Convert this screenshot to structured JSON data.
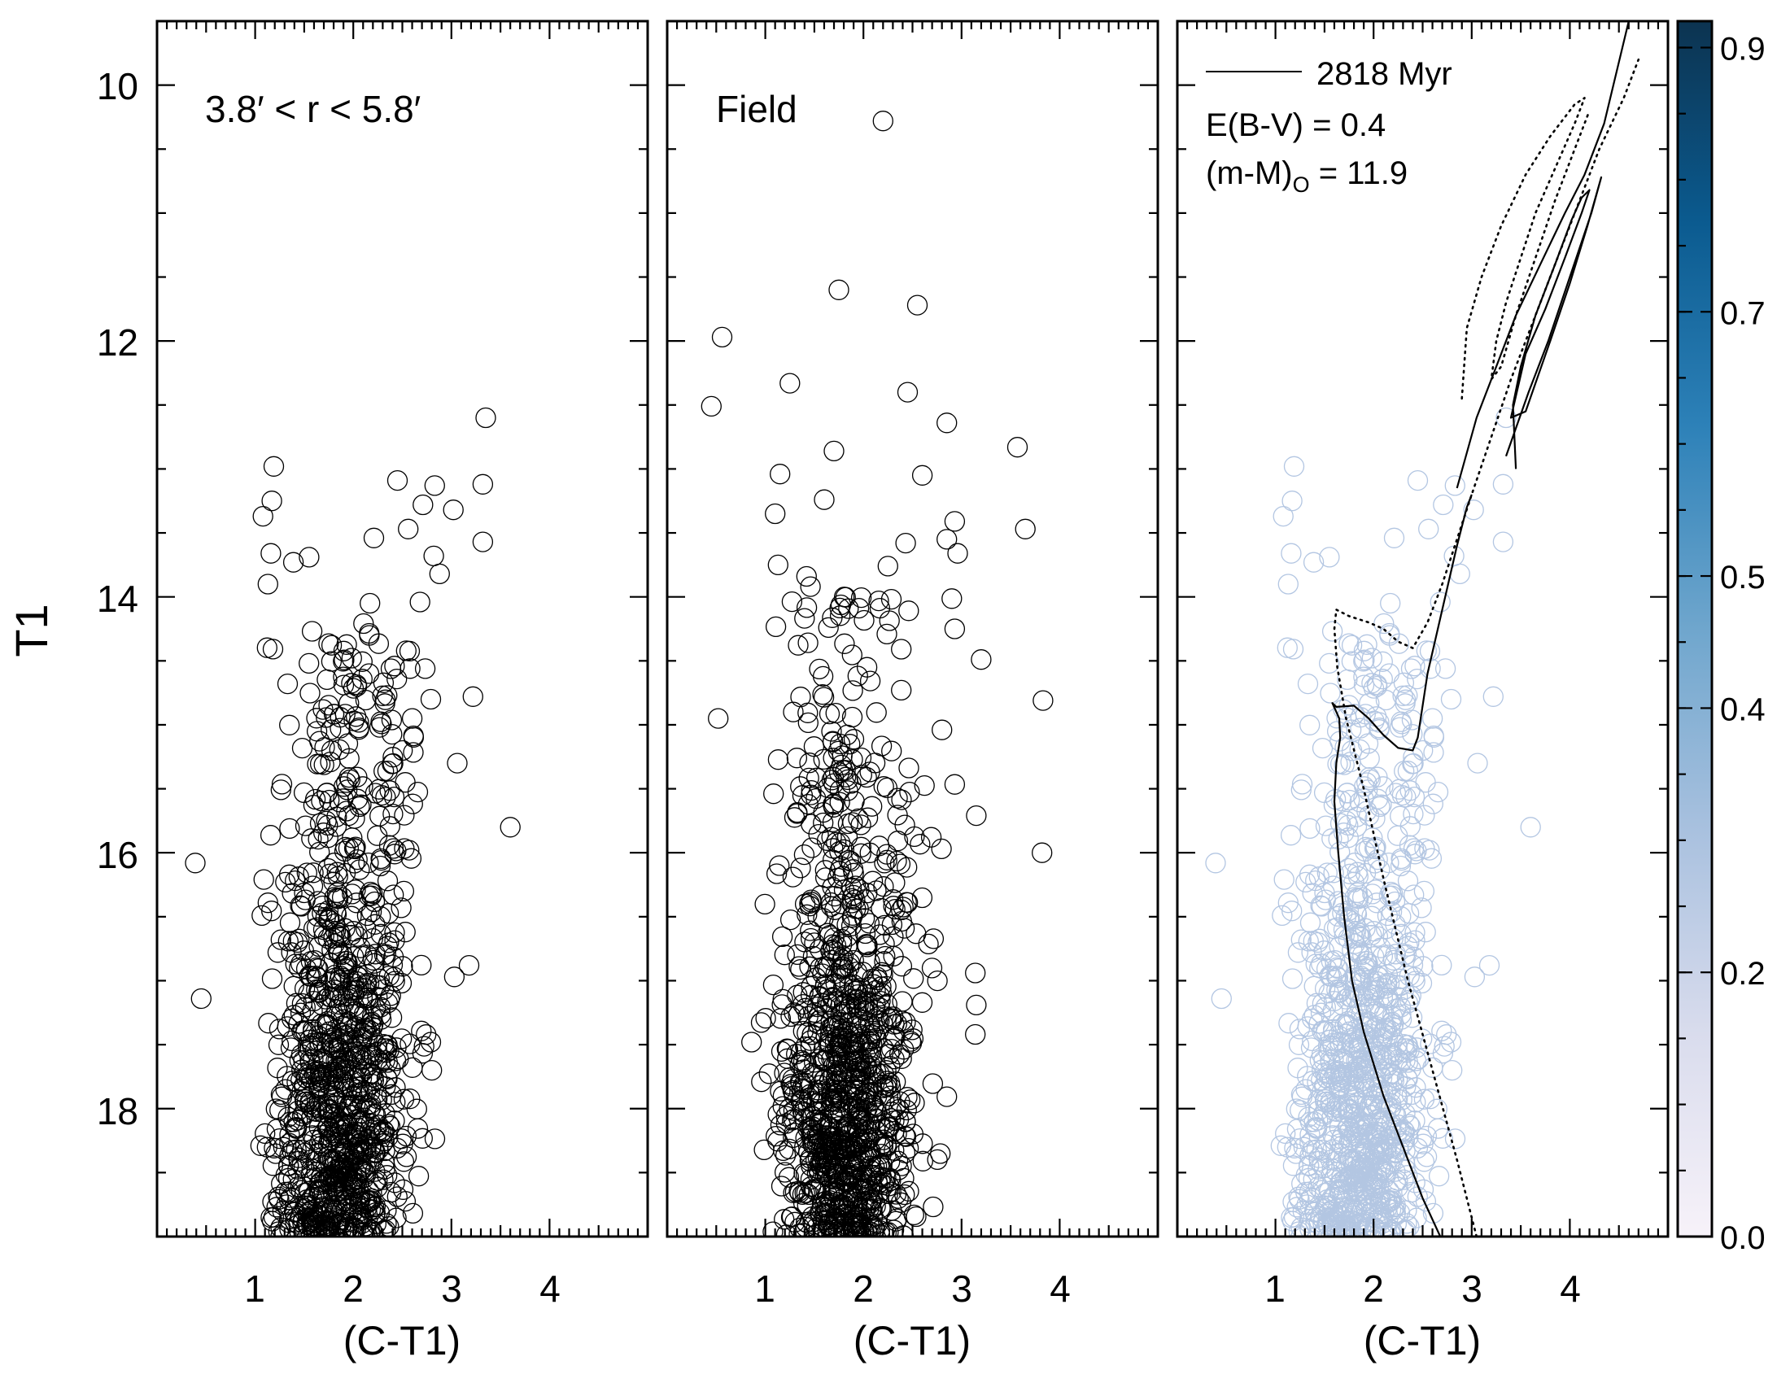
{
  "chart_data": [
    {
      "type": "scatter",
      "panel": "left",
      "label": "3.8′ < r < 5.8′",
      "xlabel": "(C-T1)",
      "ylabel": "T1",
      "xlim": [
        0,
        5
      ],
      "ylim": [
        19.0,
        9.5
      ],
      "xticks": [
        "1",
        "2",
        "3",
        "4"
      ],
      "yticks": [
        "10",
        "12",
        "14",
        "16",
        "18"
      ],
      "marker_color": "#000000",
      "highlight_points": [
        {
          "x": 0.39,
          "y": 16.08
        },
        {
          "x": 0.45,
          "y": 17.14
        },
        {
          "x": 3.35,
          "y": 12.6
        },
        {
          "x": 3.6,
          "y": 15.8
        },
        {
          "x": 3.32,
          "y": 13.12
        },
        {
          "x": 3.32,
          "y": 13.57
        },
        {
          "x": 3.22,
          "y": 14.78
        },
        {
          "x": 3.02,
          "y": 13.32
        },
        {
          "x": 3.06,
          "y": 15.3
        },
        {
          "x": 2.83,
          "y": 13.13
        },
        {
          "x": 2.71,
          "y": 13.28
        },
        {
          "x": 2.82,
          "y": 13.68
        },
        {
          "x": 2.88,
          "y": 13.82
        },
        {
          "x": 2.45,
          "y": 13.09
        },
        {
          "x": 2.21,
          "y": 13.54
        },
        {
          "x": 2.56,
          "y": 13.47
        },
        {
          "x": 1.19,
          "y": 12.98
        },
        {
          "x": 1.08,
          "y": 13.37
        },
        {
          "x": 1.17,
          "y": 13.25
        },
        {
          "x": 1.16,
          "y": 13.66
        },
        {
          "x": 1.39,
          "y": 13.73
        },
        {
          "x": 1.13,
          "y": 13.9
        },
        {
          "x": 1.55,
          "y": 13.69
        },
        {
          "x": 2.17,
          "y": 14.05
        },
        {
          "x": 2.68,
          "y": 14.04
        },
        {
          "x": 2.58,
          "y": 14.56
        },
        {
          "x": 2.6,
          "y": 14.95
        },
        {
          "x": 2.53,
          "y": 15.45
        },
        {
          "x": 2.35,
          "y": 15.36
        },
        {
          "x": 2.79,
          "y": 14.8
        },
        {
          "x": 3.18,
          "y": 16.88
        },
        {
          "x": 3.03,
          "y": 16.97
        },
        {
          "x": 2.79,
          "y": 17.48
        },
        {
          "x": 2.8,
          "y": 17.7
        },
        {
          "x": 1.22,
          "y": 18.77
        },
        {
          "x": 1.26,
          "y": 19.0
        }
      ],
      "field_points": {
        "count": 1050,
        "x_range": [
          1.05,
          2.85
        ],
        "y_range": [
          14.2,
          19.0
        ],
        "peak_x": 1.75,
        "peak_y": 18.0
      }
    },
    {
      "type": "scatter",
      "panel": "middle",
      "label": "Field",
      "xlabel": "(C-T1)",
      "xlim": [
        0,
        5
      ],
      "ylim": [
        19.0,
        9.5
      ],
      "xticks": [
        "1",
        "2",
        "3",
        "4"
      ],
      "marker_color": "#000000",
      "highlight_points": [
        {
          "x": 2.2,
          "y": 10.28
        },
        {
          "x": 1.75,
          "y": 11.6
        },
        {
          "x": 2.55,
          "y": 11.72
        },
        {
          "x": 0.56,
          "y": 11.97
        },
        {
          "x": 0.45,
          "y": 12.51
        },
        {
          "x": 1.25,
          "y": 12.33
        },
        {
          "x": 2.45,
          "y": 12.4
        },
        {
          "x": 2.85,
          "y": 12.64
        },
        {
          "x": 3.57,
          "y": 12.83
        },
        {
          "x": 1.7,
          "y": 12.86
        },
        {
          "x": 1.15,
          "y": 13.04
        },
        {
          "x": 1.6,
          "y": 13.24
        },
        {
          "x": 2.6,
          "y": 13.05
        },
        {
          "x": 1.1,
          "y": 13.35
        },
        {
          "x": 3.65,
          "y": 13.47
        },
        {
          "x": 2.93,
          "y": 13.41
        },
        {
          "x": 2.85,
          "y": 13.55
        },
        {
          "x": 2.43,
          "y": 13.58
        },
        {
          "x": 2.96,
          "y": 13.66
        },
        {
          "x": 2.25,
          "y": 13.76
        },
        {
          "x": 1.13,
          "y": 13.75
        },
        {
          "x": 1.42,
          "y": 13.84
        },
        {
          "x": 1.46,
          "y": 13.92
        },
        {
          "x": 3.83,
          "y": 14.81
        },
        {
          "x": 3.82,
          "y": 16.0
        },
        {
          "x": 3.14,
          "y": 16.94
        },
        {
          "x": 3.15,
          "y": 17.19
        },
        {
          "x": 3.14,
          "y": 17.42
        },
        {
          "x": 0.52,
          "y": 14.95
        },
        {
          "x": 0.86,
          "y": 17.48
        },
        {
          "x": 0.96,
          "y": 17.79
        },
        {
          "x": 3.2,
          "y": 14.49
        },
        {
          "x": 2.93,
          "y": 14.25
        },
        {
          "x": 3.15,
          "y": 15.71
        },
        {
          "x": 2.8,
          "y": 15.04
        }
      ],
      "field_points": {
        "count": 1100,
        "x_range": [
          0.95,
          2.95
        ],
        "y_range": [
          14.0,
          19.0
        ],
        "peak_x": 1.7,
        "peak_y": 18.1
      }
    },
    {
      "type": "scatter",
      "panel": "right",
      "xlabel": "(C-T1)",
      "xlim": [
        0,
        5
      ],
      "ylim": [
        19.0,
        9.5
      ],
      "xticks": [
        "1",
        "2",
        "3",
        "4"
      ],
      "marker_color": "#b3c6e2",
      "legend": {
        "line_label": "2818 Myr",
        "ebv_label": "E(B-V) = 0.4",
        "dm_label": "(m-M)",
        "dm_sub": "O",
        "dm_value": " = 11.9"
      },
      "isochrone_solid": [
        [
          2.68,
          19.0
        ],
        [
          2.5,
          18.7
        ],
        [
          2.3,
          18.3
        ],
        [
          2.1,
          17.9
        ],
        [
          1.9,
          17.4
        ],
        [
          1.78,
          17.0
        ],
        [
          1.7,
          16.5
        ],
        [
          1.64,
          16.0
        ],
        [
          1.6,
          15.6
        ],
        [
          1.62,
          15.3
        ],
        [
          1.66,
          15.1
        ],
        [
          1.65,
          14.95
        ],
        [
          1.58,
          14.83
        ],
        [
          1.62,
          14.86
        ],
        [
          1.8,
          14.85
        ],
        [
          1.95,
          14.95
        ],
        [
          2.1,
          15.08
        ],
        [
          2.25,
          15.18
        ],
        [
          2.4,
          15.2
        ],
        [
          2.45,
          15.1
        ],
        [
          2.55,
          14.6
        ],
        [
          2.7,
          14.1
        ],
        [
          2.85,
          13.6
        ],
        [
          2.95,
          13.3
        ],
        [
          3.0,
          13.2
        ]
      ],
      "isochrone_rgb_solid": [
        [
          2.85,
          13.15
        ],
        [
          3.05,
          12.6
        ],
        [
          3.25,
          12.2
        ],
        [
          3.45,
          11.8
        ],
        [
          3.7,
          11.4
        ],
        [
          3.95,
          11.0
        ],
        [
          4.15,
          10.7
        ],
        [
          4.35,
          10.3
        ],
        [
          4.6,
          9.5
        ]
      ],
      "isochrone_clump_solid": [
        [
          3.45,
          13.0
        ],
        [
          3.42,
          12.5
        ],
        [
          3.5,
          12.2
        ],
        [
          3.65,
          11.8
        ],
        [
          3.85,
          11.4
        ],
        [
          4.02,
          11.05
        ],
        [
          4.12,
          10.88
        ],
        [
          4.2,
          10.82
        ],
        [
          4.12,
          11.0
        ],
        [
          3.95,
          11.35
        ],
        [
          3.75,
          11.75
        ],
        [
          3.55,
          12.1
        ],
        [
          3.4,
          12.6
        ],
        [
          3.55,
          12.55
        ],
        [
          3.8,
          12.0
        ],
        [
          4.0,
          11.55
        ],
        [
          4.18,
          11.1
        ],
        [
          4.32,
          10.72
        ],
        [
          4.22,
          11.0
        ],
        [
          4.0,
          11.5
        ],
        [
          3.78,
          12.0
        ],
        [
          3.58,
          12.4
        ],
        [
          3.35,
          12.9
        ]
      ],
      "isochrone_dotted": [
        [
          3.05,
          19.0
        ],
        [
          2.85,
          18.4
        ],
        [
          2.6,
          17.7
        ],
        [
          2.35,
          17.0
        ],
        [
          2.1,
          16.2
        ],
        [
          1.9,
          15.5
        ],
        [
          1.72,
          14.95
        ],
        [
          1.63,
          14.55
        ],
        [
          1.6,
          14.25
        ],
        [
          1.62,
          14.1
        ],
        [
          1.75,
          14.15
        ],
        [
          1.95,
          14.2
        ],
        [
          2.1,
          14.25
        ],
        [
          2.25,
          14.35
        ],
        [
          2.4,
          14.4
        ],
        [
          2.55,
          14.2
        ],
        [
          2.7,
          13.9
        ],
        [
          2.85,
          13.55
        ],
        [
          3.0,
          13.2
        ],
        [
          3.2,
          12.75
        ],
        [
          3.4,
          12.3
        ],
        [
          3.55,
          12.0
        ],
        [
          3.7,
          11.7
        ],
        [
          3.9,
          11.3
        ],
        [
          4.1,
          10.9
        ],
        [
          4.3,
          10.5
        ],
        [
          4.55,
          10.1
        ],
        [
          4.7,
          9.8
        ]
      ],
      "isochrone_dotted_clump": [
        [
          2.9,
          12.45
        ],
        [
          2.95,
          11.9
        ],
        [
          3.1,
          11.5
        ],
        [
          3.3,
          11.1
        ],
        [
          3.55,
          10.7
        ],
        [
          3.8,
          10.4
        ],
        [
          4.05,
          10.15
        ],
        [
          4.15,
          10.1
        ],
        [
          4.05,
          10.3
        ],
        [
          3.85,
          10.65
        ],
        [
          3.65,
          11.0
        ],
        [
          3.5,
          11.35
        ],
        [
          3.35,
          11.7
        ],
        [
          3.25,
          12.0
        ],
        [
          3.2,
          12.3
        ],
        [
          3.3,
          12.2
        ],
        [
          3.45,
          11.8
        ],
        [
          3.65,
          11.35
        ],
        [
          3.85,
          10.9
        ],
        [
          4.05,
          10.5
        ],
        [
          4.2,
          10.2
        ]
      ],
      "colorbar": {
        "ticks": [
          "0.0",
          "0.2",
          "0.4",
          "0.5",
          "0.7",
          "0.9"
        ],
        "tick_values": [
          0.0,
          0.2,
          0.4,
          0.5,
          0.7,
          0.9
        ],
        "colors": [
          "#f7f2f9",
          "#d9dced",
          "#a9c1df",
          "#6fa6cd",
          "#2d81b8",
          "#0b5b90",
          "#0c3350"
        ]
      }
    }
  ]
}
